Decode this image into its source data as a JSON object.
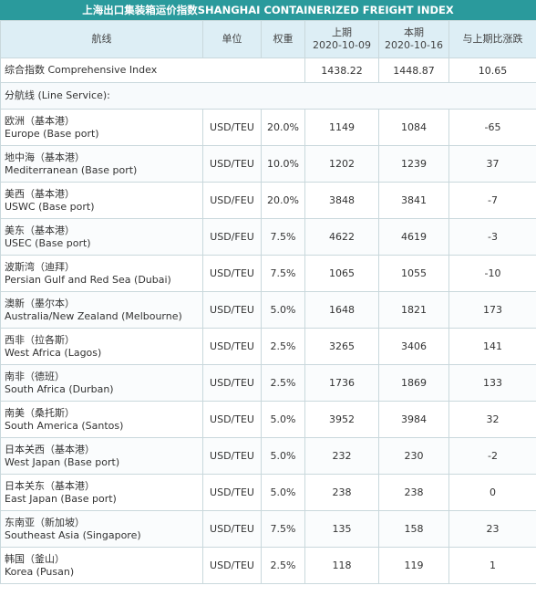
{
  "title": "上海出口集装箱运价指数SHANGHAI CONTAINERIZED FREIGHT INDEX",
  "headers": {
    "route": "航线",
    "unit": "单位",
    "weight": "权重",
    "prev_label": "上期",
    "prev_date": "2020-10-09",
    "curr_label": "本期",
    "curr_date": "2020-10-16",
    "change": "与上期比涨跌"
  },
  "composite": {
    "name": "综合指数 Comprehensive Index",
    "prev": "1438.22",
    "curr": "1448.87",
    "change": "10.65"
  },
  "sub_header": "分航线 (Line Service):",
  "routes": [
    {
      "cn": "欧洲（基本港）",
      "en": "Europe (Base port)",
      "unit": "USD/TEU",
      "weight": "20.0%",
      "prev": "1149",
      "curr": "1084",
      "change": "-65"
    },
    {
      "cn": "地中海（基本港）",
      "en": "Mediterranean (Base port)",
      "unit": "USD/TEU",
      "weight": "10.0%",
      "prev": "1202",
      "curr": "1239",
      "change": "37"
    },
    {
      "cn": "美西（基本港）",
      "en": "USWC (Base port)",
      "unit": "USD/FEU",
      "weight": "20.0%",
      "prev": "3848",
      "curr": "3841",
      "change": "-7"
    },
    {
      "cn": "美东（基本港）",
      "en": "USEC (Base port)",
      "unit": "USD/FEU",
      "weight": "7.5%",
      "prev": "4622",
      "curr": "4619",
      "change": "-3"
    },
    {
      "cn": "波斯湾（迪拜）",
      "en": "Persian Gulf and Red Sea (Dubai)",
      "unit": "USD/TEU",
      "weight": "7.5%",
      "prev": "1065",
      "curr": "1055",
      "change": "-10"
    },
    {
      "cn": "澳新（墨尔本）",
      "en": "Australia/New Zealand (Melbourne)",
      "unit": "USD/TEU",
      "weight": "5.0%",
      "prev": "1648",
      "curr": "1821",
      "change": "173"
    },
    {
      "cn": "西非（拉各斯）",
      "en": "West Africa (Lagos)",
      "unit": "USD/TEU",
      "weight": "2.5%",
      "prev": "3265",
      "curr": "3406",
      "change": "141"
    },
    {
      "cn": "南非（德班）",
      "en": "South Africa (Durban)",
      "unit": "USD/TEU",
      "weight": "2.5%",
      "prev": "1736",
      "curr": "1869",
      "change": "133"
    },
    {
      "cn": "南美（桑托斯）",
      "en": "South America (Santos)",
      "unit": "USD/TEU",
      "weight": "5.0%",
      "prev": "3952",
      "curr": "3984",
      "change": "32"
    },
    {
      "cn": "日本关西（基本港）",
      "en": "West Japan (Base port)",
      "unit": "USD/TEU",
      "weight": "5.0%",
      "prev": "232",
      "curr": "230",
      "change": "-2"
    },
    {
      "cn": "日本关东（基本港）",
      "en": "East Japan (Base port)",
      "unit": "USD/TEU",
      "weight": "5.0%",
      "prev": "238",
      "curr": "238",
      "change": "0"
    },
    {
      "cn": "东南亚（新加坡）",
      "en": "Southeast Asia (Singapore)",
      "unit": "USD/TEU",
      "weight": "7.5%",
      "prev": "135",
      "curr": "158",
      "change": "23"
    },
    {
      "cn": "韩国（釜山）",
      "en": "Korea (Pusan)",
      "unit": "USD/TEU",
      "weight": "2.5%",
      "prev": "118",
      "curr": "119",
      "change": "1"
    }
  ]
}
